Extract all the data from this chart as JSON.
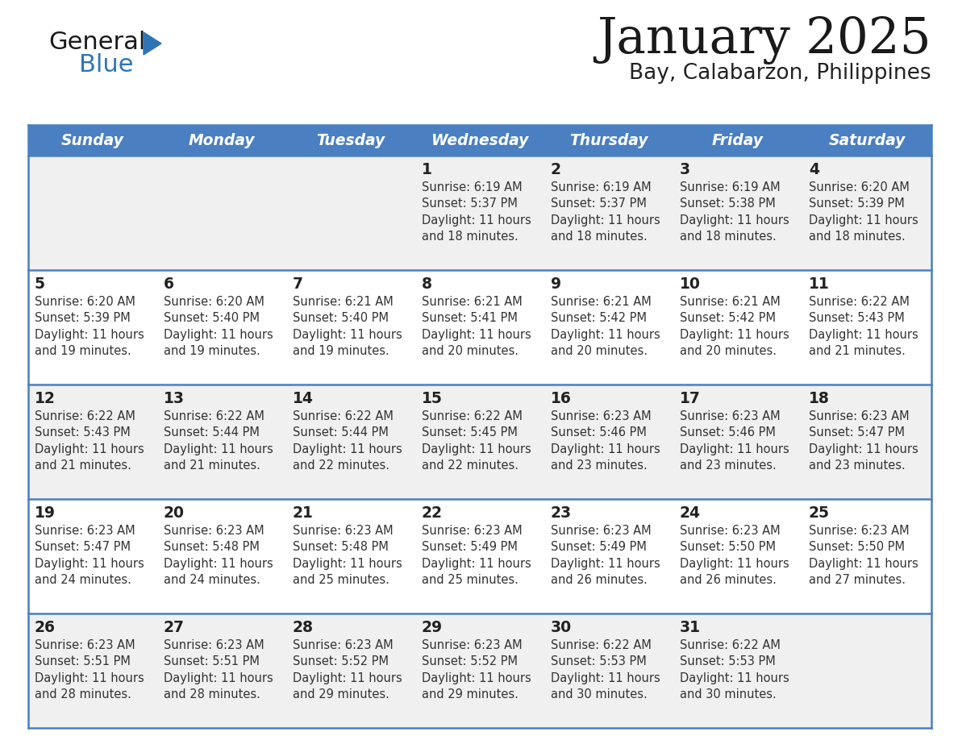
{
  "title": "January 2025",
  "subtitle": "Bay, Calabarzon, Philippines",
  "days_of_week": [
    "Sunday",
    "Monday",
    "Tuesday",
    "Wednesday",
    "Thursday",
    "Friday",
    "Saturday"
  ],
  "header_bg": "#4A7FC1",
  "header_text": "#FFFFFF",
  "cell_bg_odd": "#F0F0F0",
  "cell_bg_even": "#FFFFFF",
  "border_color": "#4A7FC1",
  "separator_color": "#4A7FC1",
  "day_number_color": "#222222",
  "text_color": "#333333",
  "title_color": "#1a1a1a",
  "subtitle_color": "#222222",
  "logo_general_color": "#1a1a1a",
  "logo_blue_color": "#2E75B6",
  "calendar_data": [
    {
      "day": 1,
      "dow": 3,
      "sunrise": "6:19 AM",
      "sunset": "5:37 PM",
      "daylight_min": 18
    },
    {
      "day": 2,
      "dow": 4,
      "sunrise": "6:19 AM",
      "sunset": "5:37 PM",
      "daylight_min": 18
    },
    {
      "day": 3,
      "dow": 5,
      "sunrise": "6:19 AM",
      "sunset": "5:38 PM",
      "daylight_min": 18
    },
    {
      "day": 4,
      "dow": 6,
      "sunrise": "6:20 AM",
      "sunset": "5:39 PM",
      "daylight_min": 18
    },
    {
      "day": 5,
      "dow": 0,
      "sunrise": "6:20 AM",
      "sunset": "5:39 PM",
      "daylight_min": 19
    },
    {
      "day": 6,
      "dow": 1,
      "sunrise": "6:20 AM",
      "sunset": "5:40 PM",
      "daylight_min": 19
    },
    {
      "day": 7,
      "dow": 2,
      "sunrise": "6:21 AM",
      "sunset": "5:40 PM",
      "daylight_min": 19
    },
    {
      "day": 8,
      "dow": 3,
      "sunrise": "6:21 AM",
      "sunset": "5:41 PM",
      "daylight_min": 20
    },
    {
      "day": 9,
      "dow": 4,
      "sunrise": "6:21 AM",
      "sunset": "5:42 PM",
      "daylight_min": 20
    },
    {
      "day": 10,
      "dow": 5,
      "sunrise": "6:21 AM",
      "sunset": "5:42 PM",
      "daylight_min": 20
    },
    {
      "day": 11,
      "dow": 6,
      "sunrise": "6:22 AM",
      "sunset": "5:43 PM",
      "daylight_min": 21
    },
    {
      "day": 12,
      "dow": 0,
      "sunrise": "6:22 AM",
      "sunset": "5:43 PM",
      "daylight_min": 21
    },
    {
      "day": 13,
      "dow": 1,
      "sunrise": "6:22 AM",
      "sunset": "5:44 PM",
      "daylight_min": 21
    },
    {
      "day": 14,
      "dow": 2,
      "sunrise": "6:22 AM",
      "sunset": "5:44 PM",
      "daylight_min": 22
    },
    {
      "day": 15,
      "dow": 3,
      "sunrise": "6:22 AM",
      "sunset": "5:45 PM",
      "daylight_min": 22
    },
    {
      "day": 16,
      "dow": 4,
      "sunrise": "6:23 AM",
      "sunset": "5:46 PM",
      "daylight_min": 23
    },
    {
      "day": 17,
      "dow": 5,
      "sunrise": "6:23 AM",
      "sunset": "5:46 PM",
      "daylight_min": 23
    },
    {
      "day": 18,
      "dow": 6,
      "sunrise": "6:23 AM",
      "sunset": "5:47 PM",
      "daylight_min": 23
    },
    {
      "day": 19,
      "dow": 0,
      "sunrise": "6:23 AM",
      "sunset": "5:47 PM",
      "daylight_min": 24
    },
    {
      "day": 20,
      "dow": 1,
      "sunrise": "6:23 AM",
      "sunset": "5:48 PM",
      "daylight_min": 24
    },
    {
      "day": 21,
      "dow": 2,
      "sunrise": "6:23 AM",
      "sunset": "5:48 PM",
      "daylight_min": 25
    },
    {
      "day": 22,
      "dow": 3,
      "sunrise": "6:23 AM",
      "sunset": "5:49 PM",
      "daylight_min": 25
    },
    {
      "day": 23,
      "dow": 4,
      "sunrise": "6:23 AM",
      "sunset": "5:49 PM",
      "daylight_min": 26
    },
    {
      "day": 24,
      "dow": 5,
      "sunrise": "6:23 AM",
      "sunset": "5:50 PM",
      "daylight_min": 26
    },
    {
      "day": 25,
      "dow": 6,
      "sunrise": "6:23 AM",
      "sunset": "5:50 PM",
      "daylight_min": 27
    },
    {
      "day": 26,
      "dow": 0,
      "sunrise": "6:23 AM",
      "sunset": "5:51 PM",
      "daylight_min": 28
    },
    {
      "day": 27,
      "dow": 1,
      "sunrise": "6:23 AM",
      "sunset": "5:51 PM",
      "daylight_min": 28
    },
    {
      "day": 28,
      "dow": 2,
      "sunrise": "6:23 AM",
      "sunset": "5:52 PM",
      "daylight_min": 29
    },
    {
      "day": 29,
      "dow": 3,
      "sunrise": "6:23 AM",
      "sunset": "5:52 PM",
      "daylight_min": 29
    },
    {
      "day": 30,
      "dow": 4,
      "sunrise": "6:22 AM",
      "sunset": "5:53 PM",
      "daylight_min": 30
    },
    {
      "day": 31,
      "dow": 5,
      "sunrise": "6:22 AM",
      "sunset": "5:53 PM",
      "daylight_min": 30
    }
  ]
}
